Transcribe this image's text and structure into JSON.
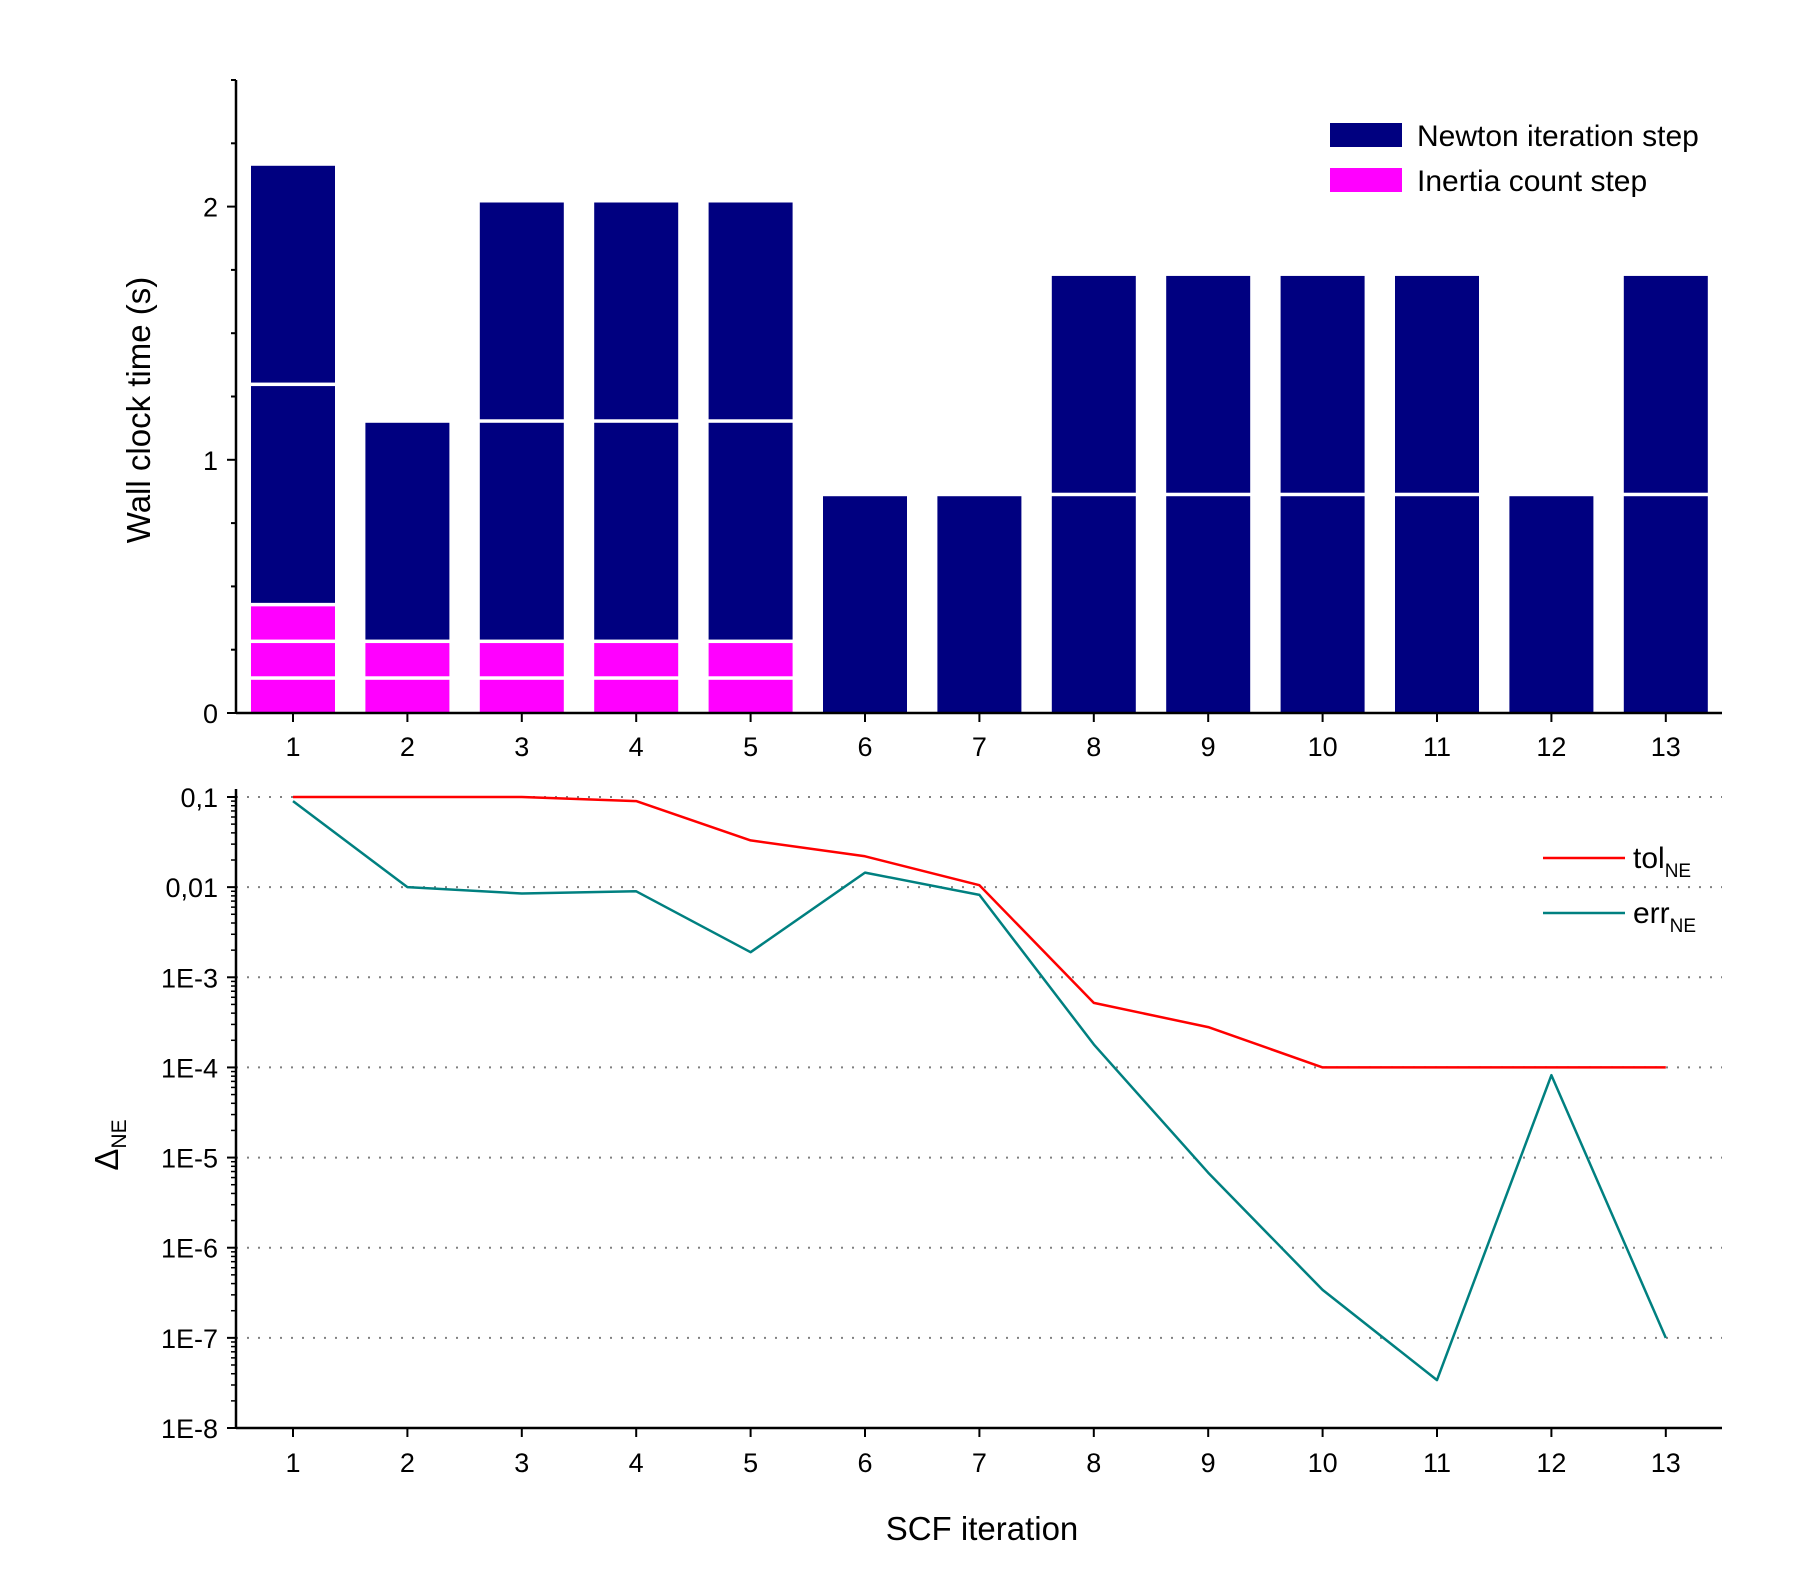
{
  "chart_data": [
    {
      "type": "bar",
      "stacked": true,
      "categories": [
        "1",
        "2",
        "3",
        "4",
        "5",
        "6",
        "7",
        "8",
        "9",
        "10",
        "11",
        "12",
        "13"
      ],
      "ylabel": "Wall clock time (s)",
      "ylim": [
        0,
        2.5
      ],
      "yticks": [
        0,
        1,
        2
      ],
      "ytick_labels": [
        "0",
        "1",
        "2"
      ],
      "series": [
        {
          "name": "Inertia count step",
          "color": "#ff00ff",
          "segment_duration": 0.145,
          "segments": [
            3,
            2,
            2,
            2,
            2,
            0,
            0,
            0,
            0,
            0,
            0,
            0,
            0
          ]
        },
        {
          "name": "Newton iteration step",
          "color": "#000080",
          "segment_duration": 0.87,
          "segments": [
            2,
            1,
            2,
            2,
            2,
            1,
            1,
            2,
            2,
            2,
            2,
            1,
            2
          ]
        }
      ],
      "legend": [
        "Newton iteration step",
        "Inertia count step"
      ],
      "legend_position": "top-right"
    },
    {
      "type": "line",
      "yscale": "log",
      "x": [
        1,
        2,
        3,
        4,
        5,
        6,
        7,
        8,
        9,
        10,
        11,
        12,
        13
      ],
      "xlabel": "SCF iteration",
      "ylabel": "Δ",
      "ylabel_sub": "NE",
      "ylim": [
        1e-08,
        0.1
      ],
      "ytick_values": [
        0.1,
        0.01,
        0.001,
        0.0001,
        1e-05,
        1e-06,
        1e-07,
        1e-08
      ],
      "ytick_labels": [
        "0,1",
        "0,01",
        "1E-3",
        "1E-4",
        "1E-5",
        "1E-6",
        "1E-7",
        "1E-8"
      ],
      "grid": "horizontal dotted",
      "series": [
        {
          "name": "tol",
          "sub": "NE",
          "color": "#ff0000",
          "values": [
            0.1,
            0.1,
            0.1,
            0.09,
            0.033,
            0.022,
            0.0105,
            0.00052,
            0.00028,
            0.0001,
            0.0001,
            0.0001,
            0.0001
          ]
        },
        {
          "name": "err",
          "sub": "NE",
          "color": "#008080",
          "values": [
            0.09,
            0.01,
            0.0085,
            0.009,
            0.0019,
            0.0145,
            0.0082,
            0.00018,
            6.8e-06,
            3.4e-07,
            3.4e-08,
            8.2e-05,
            1e-07
          ]
        }
      ],
      "legend_position": "top-right"
    }
  ]
}
